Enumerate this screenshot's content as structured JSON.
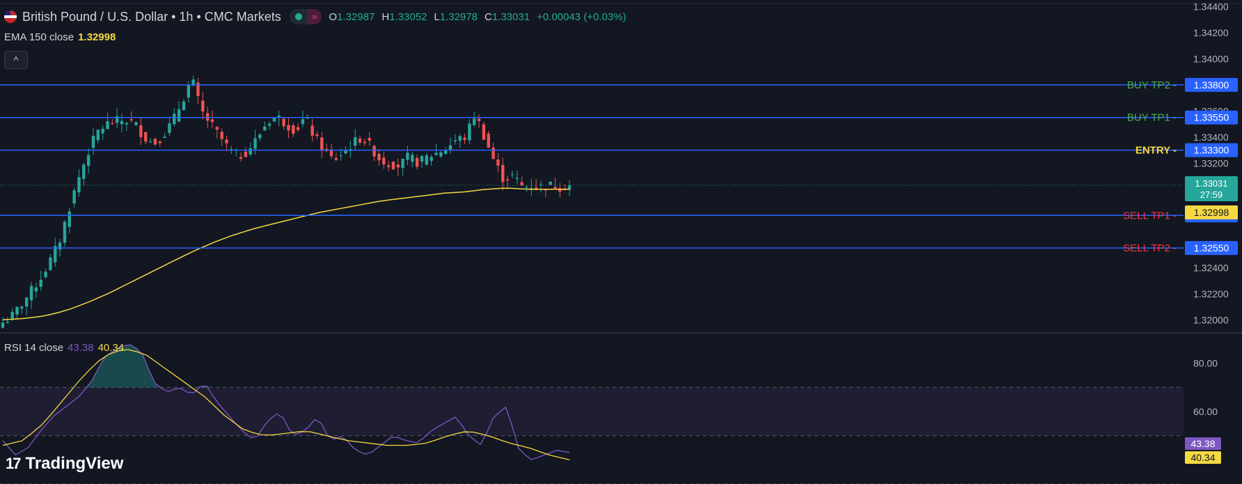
{
  "header": {
    "symbol_title": "British Pound / U.S. Dollar • 1h • CMC Markets",
    "wave_glyph": "≈",
    "ohlc": {
      "o_label": "O",
      "o": "1.32987",
      "h_label": "H",
      "h": "1.33052",
      "l_label": "L",
      "l": "1.32978",
      "c_label": "C",
      "c": "1.33031",
      "change": "+0.00043 (+0.03%)"
    }
  },
  "ema": {
    "label": "EMA 150 close",
    "value": "1.32998"
  },
  "rsi": {
    "label": "RSI 14 close",
    "value": "43.38",
    "ma_value": "40.34"
  },
  "branding": {
    "logo_mark": "17",
    "logo_text": "TradingView"
  },
  "collapse_glyph": "^",
  "colors": {
    "background": "#131722",
    "up": "#26a69a",
    "down": "#ef5350",
    "level_line": "#2962ff",
    "ema": "#f5d942",
    "rsi": "#7e57c2",
    "buy_label": "#4caf50",
    "sell_label": "#f23645",
    "entry_label": "#f5d942"
  },
  "chart_data": [
    {
      "type": "line",
      "name": "price",
      "ylim": [
        1.319,
        1.3445
      ],
      "y_ticks": [
        "1.34400",
        "1.34200",
        "1.34000",
        "1.33600",
        "1.33400",
        "1.33200",
        "1.32400",
        "1.32200",
        "1.32000"
      ],
      "last_price": {
        "value": "1.33031",
        "countdown": "27:59"
      },
      "ema_value": "1.32998",
      "levels": [
        {
          "name": "BUY TP2",
          "value": 1.338,
          "label": "1.33800",
          "kind": "buy"
        },
        {
          "name": "BUY TP1",
          "value": 1.3355,
          "label": "1.33550",
          "kind": "buy"
        },
        {
          "name": "ENTRY",
          "value": 1.333,
          "label": "1.33300",
          "kind": "entry"
        },
        {
          "name": "SELL TP1",
          "value": 1.328,
          "label": "1.32800",
          "kind": "sell"
        },
        {
          "name": "SELL TP2",
          "value": 1.3255,
          "label": "1.32550",
          "kind": "sell"
        }
      ],
      "close_path": [
        1.3198,
        1.3203,
        1.3212,
        1.3222,
        1.3232,
        1.3245,
        1.326,
        1.3285,
        1.3308,
        1.3328,
        1.3344,
        1.335,
        1.3352,
        1.3353,
        1.335,
        1.334,
        1.3335,
        1.3342,
        1.3352,
        1.3368,
        1.3385,
        1.336,
        1.335,
        1.334,
        1.333,
        1.3325,
        1.333,
        1.334,
        1.3352,
        1.3356,
        1.335,
        1.3345,
        1.3355,
        1.334,
        1.333,
        1.3322,
        1.3328,
        1.3335,
        1.334,
        1.3332,
        1.3322,
        1.332,
        1.3318,
        1.3325,
        1.332,
        1.3325,
        1.3328,
        1.3332,
        1.3338,
        1.334,
        1.3358,
        1.334,
        1.3322,
        1.3308,
        1.331,
        1.3302,
        1.3303,
        1.3302,
        1.3303,
        1.3302,
        1.3303
      ],
      "ema_path": [
        1.32,
        1.3201,
        1.3203,
        1.3207,
        1.3213,
        1.322,
        1.3228,
        1.3236,
        1.3244,
        1.3252,
        1.3259,
        1.3265,
        1.327,
        1.3274,
        1.3278,
        1.3282,
        1.3285,
        1.3288,
        1.3291,
        1.3293,
        1.3295,
        1.3297,
        1.3298,
        1.33,
        1.3301,
        1.33,
        1.33,
        1.33
      ]
    },
    {
      "type": "line",
      "name": "rsi",
      "ylim": [
        30,
        92
      ],
      "y_ticks": [
        "80.00",
        "60.00"
      ],
      "band": [
        50,
        70
      ],
      "rsi_path": [
        48,
        42,
        45,
        52,
        58,
        62,
        66,
        72,
        82,
        86,
        88,
        85,
        72,
        68,
        70,
        67,
        72,
        64,
        58,
        52,
        48,
        56,
        60,
        50,
        52,
        58,
        48,
        50,
        44,
        42,
        46,
        50,
        48,
        47,
        52,
        55,
        58,
        50,
        46,
        58,
        62,
        44,
        40,
        42,
        44,
        43
      ],
      "ma_path": [
        46,
        48,
        55,
        65,
        75,
        83,
        86,
        84,
        78,
        72,
        66,
        58,
        52,
        50,
        51,
        52,
        50,
        48,
        47,
        46,
        46,
        47,
        50,
        52,
        50,
        47,
        45,
        42,
        40
      ]
    }
  ]
}
